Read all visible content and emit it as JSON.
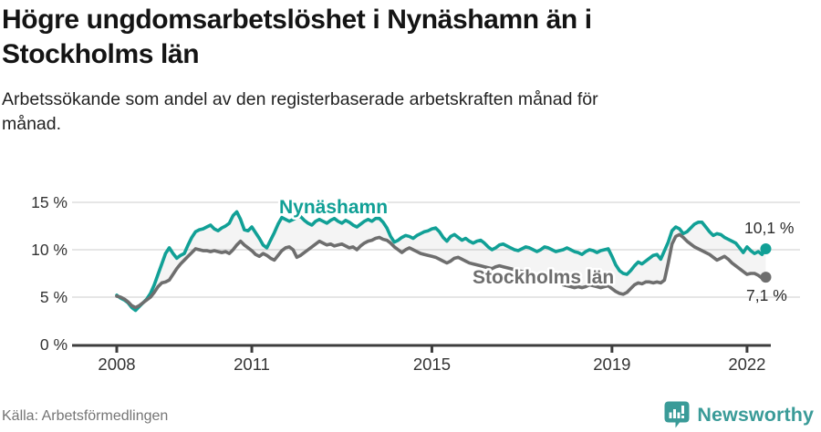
{
  "header": {
    "title_line1": "Högre ungdomsarbetslöshet i Nynäshamn än i",
    "title_line2": "Stockholms län",
    "subtitle_line1": "Arbetssökande som andel av den registerbaserade arbetskraften månad för",
    "subtitle_line2": "månad."
  },
  "footer": {
    "source": "Källa: Arbetsförmedlingen",
    "brand": "Newsworthy"
  },
  "colors": {
    "accent_teal": "#11A096",
    "line_gray": "#6E6E6E",
    "grid": "#DEDEDE",
    "axis": "#3D3D3D",
    "tick_text": "#333333",
    "value_label": "#2B2B2B",
    "fill_between": "rgba(0,0,0,0.045)",
    "brand_teal": "#3A9B98"
  },
  "chart_data": {
    "type": "line",
    "title": "Högre ungdomsarbetslöshet i Nynäshamn än i Stockholms län",
    "subtitle": "Arbetssökande som andel av den registerbaserade arbetskraften månad för månad.",
    "x_start": "2008-01",
    "x_end": "2022-06",
    "x_tick_labels": [
      "2008",
      "2011",
      "2015",
      "2019",
      "2022"
    ],
    "x_tick_month_index": [
      0,
      36,
      84,
      132,
      168
    ],
    "y_tick_labels": [
      "0 %",
      "5 %",
      "10 %",
      "15 %"
    ],
    "y_tick_values": [
      0,
      5,
      10,
      15
    ],
    "ylim": [
      0,
      15
    ],
    "grid": true,
    "legend_position": "inline-labels",
    "series": [
      {
        "name": "Nynäshamn",
        "color": "#11A096",
        "end_label": "10,1 %",
        "end_value": 10.1,
        "values": [
          5.2,
          4.9,
          4.7,
          4.4,
          3.9,
          3.6,
          4.0,
          4.4,
          4.8,
          5.4,
          6.3,
          7.4,
          8.5,
          9.6,
          10.2,
          9.6,
          9.1,
          9.4,
          9.6,
          10.5,
          11.3,
          11.9,
          12.1,
          12.2,
          12.4,
          12.6,
          12.2,
          12.0,
          12.3,
          12.5,
          12.8,
          13.6,
          14.0,
          13.2,
          12.1,
          12.0,
          12.4,
          11.8,
          11.2,
          10.5,
          10.2,
          11.0,
          11.8,
          12.7,
          13.4,
          13.2,
          13.0,
          13.2,
          13.4,
          13.5,
          13.1,
          12.8,
          12.6,
          13.0,
          13.2,
          13.0,
          12.8,
          13.1,
          13.3,
          13.0,
          12.8,
          13.1,
          12.9,
          12.6,
          12.4,
          12.7,
          13.0,
          13.2,
          13.0,
          13.3,
          13.3,
          12.9,
          12.3,
          11.4,
          10.8,
          11.0,
          11.3,
          11.5,
          11.4,
          11.2,
          11.5,
          11.7,
          11.9,
          12.0,
          12.2,
          12.3,
          11.9,
          11.3,
          10.9,
          11.4,
          11.6,
          11.3,
          11.0,
          11.2,
          10.9,
          10.7,
          10.9,
          11.0,
          10.7,
          10.3,
          10.0,
          10.2,
          10.5,
          10.6,
          10.4,
          10.2,
          10.0,
          9.9,
          10.1,
          10.3,
          10.2,
          10.0,
          9.8,
          10.0,
          10.3,
          10.2,
          10.0,
          9.8,
          9.9,
          10.0,
          10.2,
          10.0,
          9.8,
          9.7,
          9.5,
          9.8,
          10.0,
          9.9,
          9.7,
          9.9,
          10.0,
          10.1,
          9.3,
          8.4,
          7.8,
          7.5,
          7.4,
          7.8,
          8.3,
          8.7,
          8.5,
          8.8,
          9.1,
          9.4,
          9.5,
          9.0,
          9.9,
          10.8,
          12.0,
          12.4,
          12.2,
          11.7,
          11.9,
          12.3,
          12.7,
          12.9,
          12.9,
          12.4,
          11.9,
          11.5,
          11.7,
          11.6,
          11.3,
          11.1,
          10.9,
          10.7,
          10.2,
          9.7,
          10.3,
          9.9,
          9.6,
          9.8,
          9.5,
          10.1
        ]
      },
      {
        "name": "Stockholms län",
        "color": "#6E6E6E",
        "end_label": "7,1 %",
        "end_value": 7.1,
        "values": [
          5.1,
          5.0,
          4.8,
          4.5,
          4.1,
          3.9,
          4.1,
          4.4,
          4.7,
          5.0,
          5.5,
          6.1,
          6.5,
          6.6,
          6.8,
          7.4,
          8.0,
          8.5,
          8.9,
          9.3,
          9.7,
          10.1,
          10.0,
          9.9,
          9.9,
          9.8,
          9.9,
          9.8,
          9.7,
          9.8,
          9.6,
          10.0,
          10.5,
          10.9,
          10.5,
          10.2,
          9.9,
          9.5,
          9.3,
          9.6,
          9.4,
          9.1,
          8.9,
          9.4,
          9.9,
          10.2,
          10.3,
          10.0,
          9.2,
          9.4,
          9.7,
          10.0,
          10.3,
          10.6,
          10.9,
          10.7,
          10.5,
          10.6,
          10.4,
          10.5,
          10.6,
          10.4,
          10.2,
          10.3,
          10.0,
          10.4,
          10.7,
          10.9,
          11.0,
          11.2,
          11.3,
          11.1,
          11.0,
          10.7,
          10.3,
          10.0,
          9.7,
          10.0,
          10.2,
          10.0,
          9.8,
          9.6,
          9.5,
          9.4,
          9.3,
          9.2,
          9.0,
          8.8,
          8.6,
          8.8,
          9.1,
          9.2,
          9.0,
          8.8,
          8.6,
          8.5,
          8.4,
          8.3,
          8.2,
          8.1,
          8.0,
          8.2,
          8.3,
          8.2,
          8.1,
          8.0,
          7.9,
          7.8,
          7.7,
          7.6,
          7.5,
          7.4,
          7.3,
          7.4,
          7.5,
          7.4,
          7.2,
          6.9,
          6.6,
          6.3,
          6.2,
          6.1,
          6.0,
          6.1,
          6.0,
          6.1,
          6.3,
          6.2,
          6.1,
          6.0,
          6.1,
          6.2,
          5.9,
          5.6,
          5.4,
          5.3,
          5.5,
          5.9,
          6.3,
          6.5,
          6.4,
          6.6,
          6.6,
          6.5,
          6.6,
          6.5,
          6.8,
          8.6,
          10.6,
          11.4,
          11.6,
          11.3,
          10.9,
          10.6,
          10.3,
          10.1,
          9.9,
          9.7,
          9.5,
          9.2,
          8.9,
          9.1,
          9.3,
          9.0,
          8.6,
          8.3,
          8.0,
          7.7,
          7.4,
          7.5,
          7.5,
          7.3,
          7.0,
          7.1
        ]
      }
    ]
  }
}
